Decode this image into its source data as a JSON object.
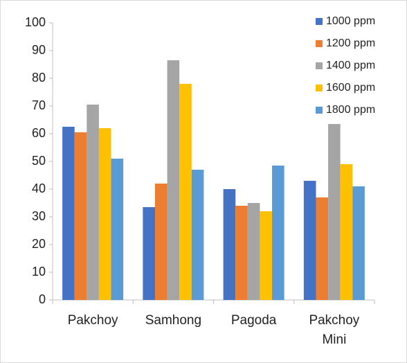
{
  "chart_data": {
    "type": "bar",
    "categories": [
      "Pakchoy",
      "Samhong",
      "Pagoda",
      "Pakchoy Mini"
    ],
    "series": [
      {
        "name": "1000 ppm",
        "color": "#4472c4",
        "values": [
          62.5,
          33.5,
          40,
          43
        ]
      },
      {
        "name": "1200 ppm",
        "color": "#ed7d31",
        "values": [
          60.5,
          42,
          34,
          37
        ]
      },
      {
        "name": "1400 ppm",
        "color": "#a5a5a5",
        "values": [
          70.5,
          86.5,
          35,
          63.5
        ]
      },
      {
        "name": "1600 ppm",
        "color": "#ffc000",
        "values": [
          62,
          78,
          32,
          49
        ]
      },
      {
        "name": "1800 ppm",
        "color": "#5b9bd5",
        "values": [
          51,
          47,
          48.5,
          41
        ]
      }
    ],
    "ylim": [
      0,
      100
    ],
    "yticks": [
      0,
      10,
      20,
      30,
      40,
      50,
      60,
      70,
      80,
      90,
      100
    ],
    "grid": false,
    "legend": "top-right"
  }
}
